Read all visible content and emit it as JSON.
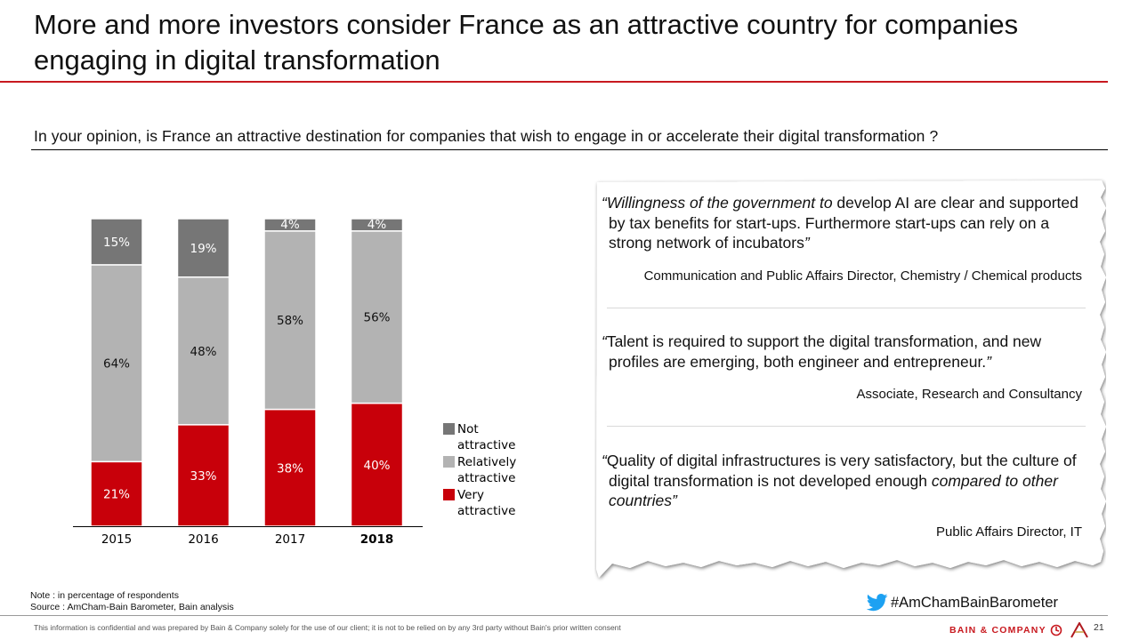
{
  "header": {
    "title": "More and more investors consider France as an attractive country for companies engaging in digital transformation",
    "question": "In your opinion, is France an attractive destination for companies that wish to engage in or accelerate their digital transformation ?"
  },
  "colors": {
    "very": "#c8000a",
    "relatively": "#b3b3b3",
    "not": "#767676",
    "accent": "#c8191f"
  },
  "chart_data": {
    "type": "bar",
    "stacked": true,
    "unit": "%",
    "categories": [
      "2015",
      "2016",
      "2017",
      "2018"
    ],
    "highlighted_category": "2018",
    "series": [
      {
        "name": "Very attractive",
        "values": [
          21,
          33,
          38,
          40
        ],
        "labels": [
          "21%",
          "33%",
          "38%",
          "40%"
        ]
      },
      {
        "name": "Relatively attractive",
        "values": [
          64,
          48,
          58,
          56
        ],
        "labels": [
          "64%",
          "48%",
          "58%",
          "56%"
        ]
      },
      {
        "name": "Not attractive",
        "values": [
          15,
          19,
          4,
          4
        ],
        "labels": [
          "15%",
          "19%",
          "4%",
          "4%"
        ]
      }
    ],
    "ylim": [
      0,
      100
    ],
    "grid": false,
    "legend_position": "right",
    "legend": [
      {
        "label": "Not attractive",
        "color": "#767676"
      },
      {
        "label": "Relatively attractive",
        "color": "#b3b3b3"
      },
      {
        "label": "Very attractive",
        "color": "#c8000a"
      }
    ]
  },
  "quotes": [
    {
      "italic_lead": "“Willingness of the government to",
      "text": " develop AI are clear and supported by tax benefits for start-ups. Furthermore start-ups can rely on a strong network of incubators",
      "italic_tail": "”",
      "attribution": "Communication and Public Affairs Director, Chemistry / Chemical products"
    },
    {
      "italic_lead": "“",
      "text": "Talent is required to support the digital transformation, and new profiles are emerging, both engineer and entrepreneur.",
      "italic_tail": "”",
      "attribution": "Associate, Research and Consultancy"
    },
    {
      "italic_lead": "“",
      "text": "Quality of digital infrastructures is very satisfactory, but the culture of digital transformation is not developed enough ",
      "italic_tail": "compared to other countries”",
      "attribution": "Public Affairs Director, IT"
    }
  ],
  "footer": {
    "note": "Note : in percentage of respondents",
    "source": "Source : AmCham-Bain Barometer, Bain analysis",
    "confidential": "This information is confidential and was prepared by Bain & Company solely for the use of our client; it is not to be relied on by any 3rd party without Bain's prior written consent",
    "hashtag": "#AmChamBainBarometer",
    "brand": "BAIN & COMPANY",
    "page_number": "21",
    "icons": [
      "twitter-icon",
      "bain-logo-icon",
      "amcham-logo-icon"
    ]
  }
}
